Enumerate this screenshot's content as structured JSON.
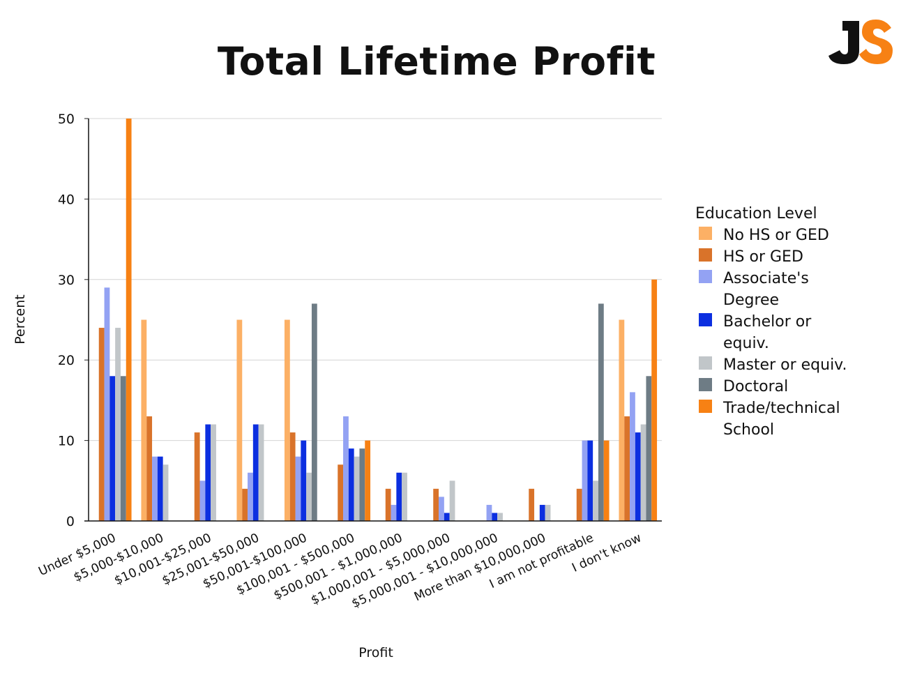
{
  "logo": {
    "letters": "JS",
    "colors": {
      "j": "#111111",
      "s": "#f78114"
    }
  },
  "chart_data": {
    "type": "bar",
    "title": "Total Lifetime Profit",
    "xlabel": "Profit",
    "ylabel": "Percent",
    "ylim": [
      0,
      50
    ],
    "yticks": [
      0,
      10,
      20,
      30,
      40,
      50
    ],
    "grid": true,
    "legend": {
      "title": "Education Level",
      "placement": "right"
    },
    "categories": [
      "Under $5,000",
      "$5,000-$10,000",
      "$10,001-$25,000",
      "$25,001-$50,000",
      "$50,001-$100,000",
      "$100,001 - $500,000",
      "$500,001 - $1,000,000",
      "$1,000,001 - $5,000,000",
      "$5,000,001 - $10,000,000",
      "More than $10,000,000",
      "I am not profitable",
      "I don't know"
    ],
    "series": [
      {
        "name": "No HS or GED",
        "color": "#fcb065",
        "values": [
          0,
          25,
          0,
          25,
          25,
          0,
          0,
          0,
          0,
          0,
          0,
          25
        ]
      },
      {
        "name": "HS or GED",
        "color": "#d9732a",
        "values": [
          24,
          13,
          11,
          4,
          11,
          7,
          4,
          4,
          0,
          4,
          4,
          13
        ]
      },
      {
        "name": "Associate's Degree",
        "color": "#93a2f3",
        "values": [
          29,
          8,
          5,
          6,
          8,
          13,
          2,
          3,
          2,
          0,
          10,
          16
        ]
      },
      {
        "name": "Bachelor or equiv.",
        "color": "#0c2fe0",
        "values": [
          18,
          8,
          12,
          12,
          10,
          9,
          6,
          1,
          1,
          2,
          10,
          11
        ]
      },
      {
        "name": "Master or equiv.",
        "color": "#c1c6c9",
        "values": [
          24,
          7,
          12,
          12,
          6,
          8,
          6,
          5,
          1,
          2,
          5,
          12
        ]
      },
      {
        "name": "Doctoral",
        "color": "#6e7c85",
        "values": [
          18,
          0,
          0,
          0,
          27,
          9,
          0,
          0,
          0,
          0,
          27,
          18
        ]
      },
      {
        "name": "Trade/technical School",
        "color": "#f78114",
        "values": [
          50,
          0,
          0,
          0,
          0,
          10,
          0,
          0,
          0,
          0,
          10,
          30
        ]
      }
    ]
  }
}
